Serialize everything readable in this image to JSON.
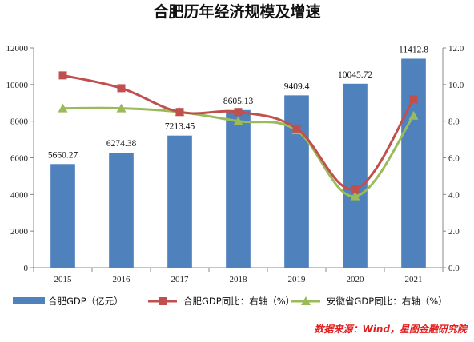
{
  "chart_data": {
    "type": "bar",
    "title": "合肥历年经济规模及增速",
    "categories": [
      "2015",
      "2016",
      "2017",
      "2018",
      "2019",
      "2020",
      "2021"
    ],
    "series": [
      {
        "name": "合肥GDP（亿元）",
        "type": "bar",
        "axis": "left",
        "color": "#4f81bd",
        "values": [
          5660.27,
          6274.38,
          7213.45,
          8605.13,
          9409.4,
          10045.72,
          11412.8
        ],
        "labels": [
          "5660.27",
          "6274.38",
          "7213.45",
          "8605.13",
          "9409.4",
          "10045.72",
          "11412.8"
        ]
      },
      {
        "name": "合肥GDP同比：右轴（%）",
        "type": "line",
        "axis": "right",
        "color": "#c0504d",
        "marker": "square",
        "values": [
          10.5,
          9.8,
          8.5,
          8.5,
          7.6,
          4.3,
          9.2
        ]
      },
      {
        "name": "安徽省GDP同比：右轴（%）",
        "type": "line",
        "axis": "right",
        "color": "#9bbb59",
        "marker": "triangle",
        "values": [
          8.7,
          8.7,
          8.5,
          8.0,
          7.5,
          3.9,
          8.3
        ]
      }
    ],
    "y_left": {
      "ylim": [
        0,
        12000
      ],
      "ticks": [
        "0",
        "2000",
        "4000",
        "6000",
        "8000",
        "10000",
        "12000"
      ]
    },
    "y_right": {
      "ylim": [
        0,
        12
      ],
      "ticks": [
        "0.0",
        "2.0",
        "4.0",
        "6.0",
        "8.0",
        "10.0",
        "12.0"
      ]
    },
    "grid": false,
    "legend_position": "bottom"
  },
  "source_note": "数据来源：Wind，星图金融研究院"
}
